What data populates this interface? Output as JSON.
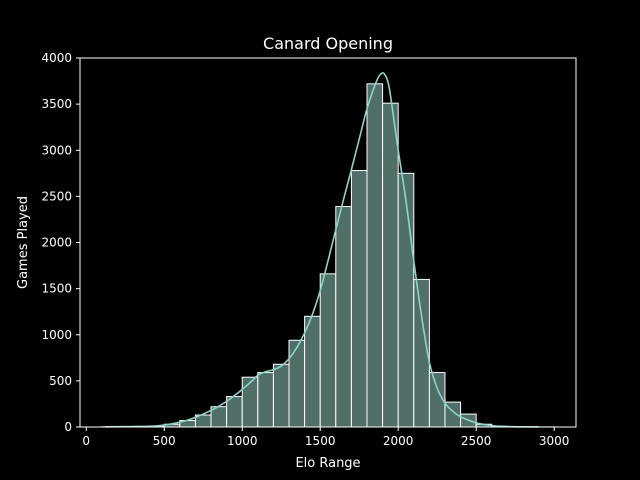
{
  "colors": {
    "background": "#000000",
    "axes": "#ffffff",
    "bar_fill": "#4f6f68",
    "bar_edge": "#ffffff",
    "kde_line": "#8dd3c7"
  },
  "chart_data": {
    "type": "bar",
    "subtype": "histogram-with-kde",
    "title": "Canard Opening",
    "xlabel": "Elo Range",
    "ylabel": "Games Played",
    "xlim": [
      -40,
      3140
    ],
    "ylim": [
      0,
      4000
    ],
    "xticks": [
      0,
      500,
      1000,
      1500,
      2000,
      2500,
      3000
    ],
    "yticks": [
      0,
      500,
      1000,
      1500,
      2000,
      2500,
      3000,
      3500,
      4000
    ],
    "grid": false,
    "bins": [
      {
        "x0": 100,
        "x1": 200,
        "value": 2
      },
      {
        "x0": 200,
        "x1": 300,
        "value": 3
      },
      {
        "x0": 300,
        "x1": 400,
        "value": 5
      },
      {
        "x0": 400,
        "x1": 500,
        "value": 8
      },
      {
        "x0": 500,
        "x1": 600,
        "value": 30
      },
      {
        "x0": 600,
        "x1": 700,
        "value": 70
      },
      {
        "x0": 700,
        "x1": 800,
        "value": 130
      },
      {
        "x0": 800,
        "x1": 900,
        "value": 220
      },
      {
        "x0": 900,
        "x1": 1000,
        "value": 330
      },
      {
        "x0": 1000,
        "x1": 1100,
        "value": 540
      },
      {
        "x0": 1100,
        "x1": 1200,
        "value": 590
      },
      {
        "x0": 1200,
        "x1": 1300,
        "value": 680
      },
      {
        "x0": 1300,
        "x1": 1400,
        "value": 940
      },
      {
        "x0": 1400,
        "x1": 1500,
        "value": 1200
      },
      {
        "x0": 1500,
        "x1": 1600,
        "value": 1660
      },
      {
        "x0": 1600,
        "x1": 1700,
        "value": 2390
      },
      {
        "x0": 1700,
        "x1": 1800,
        "value": 2780
      },
      {
        "x0": 1800,
        "x1": 1900,
        "value": 3720
      },
      {
        "x0": 1900,
        "x1": 2000,
        "value": 3510
      },
      {
        "x0": 2000,
        "x1": 2100,
        "value": 2750
      },
      {
        "x0": 2100,
        "x1": 2200,
        "value": 1600
      },
      {
        "x0": 2200,
        "x1": 2300,
        "value": 590
      },
      {
        "x0": 2300,
        "x1": 2400,
        "value": 270
      },
      {
        "x0": 2400,
        "x1": 2500,
        "value": 140
      },
      {
        "x0": 2500,
        "x1": 2600,
        "value": 30
      },
      {
        "x0": 2600,
        "x1": 2700,
        "value": 8
      },
      {
        "x0": 2700,
        "x1": 2800,
        "value": 4
      },
      {
        "x0": 2800,
        "x1": 2900,
        "value": 2
      },
      {
        "x0": 2900,
        "x1": 3000,
        "value": 1
      }
    ],
    "kde": {
      "x": [
        120,
        300,
        450,
        550,
        650,
        750,
        850,
        950,
        1050,
        1100,
        1150,
        1200,
        1250,
        1300,
        1350,
        1400,
        1450,
        1500,
        1550,
        1600,
        1650,
        1700,
        1750,
        1800,
        1850,
        1880,
        1910,
        1940,
        1975,
        2000,
        2050,
        2100,
        2150,
        2200,
        2250,
        2300,
        2350,
        2400,
        2450,
        2500,
        2600,
        2700,
        2800,
        2900
      ],
      "y": [
        2,
        5,
        12,
        35,
        75,
        140,
        225,
        340,
        480,
        560,
        600,
        620,
        660,
        740,
        860,
        1020,
        1220,
        1480,
        1800,
        2140,
        2470,
        2790,
        3120,
        3450,
        3700,
        3810,
        3830,
        3700,
        3300,
        3000,
        2450,
        1800,
        1200,
        700,
        420,
        260,
        170,
        110,
        75,
        45,
        15,
        5,
        2,
        1
      ]
    }
  }
}
